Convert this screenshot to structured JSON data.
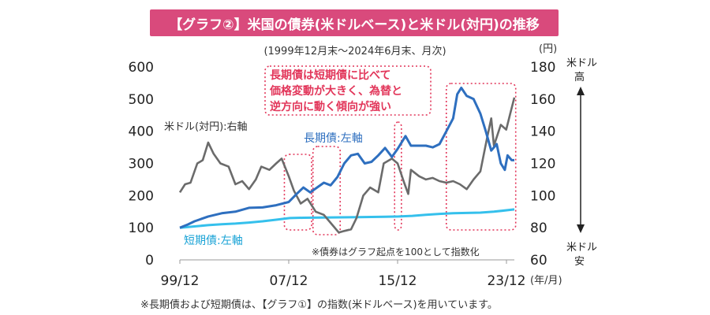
{
  "header": {
    "title": "【グラフ②】米国の債券(米ドルベース)と米ドル(対円)の推移",
    "subtitle": "(1999年12月末〜2024年6月末、月次)"
  },
  "footnote": "※長期債および短期債は、【グラフ①】の指数(米ドルベース)を用いています。",
  "chart_data": {
    "type": "line",
    "x_ticks": [
      "99/12",
      "07/12",
      "15/12",
      "23/12"
    ],
    "x_unit": "(年/月)",
    "y_left": {
      "ticks": [
        "0",
        "100",
        "200",
        "300",
        "400",
        "500",
        "600"
      ],
      "ylim": [
        0,
        600
      ]
    },
    "y_right": {
      "unit": "(円)",
      "ticks": [
        "60",
        "80",
        "100",
        "120",
        "140",
        "160",
        "180"
      ],
      "ylim": [
        60,
        180
      ]
    },
    "annotations": {
      "callout": [
        "長期債は短期債に比べて",
        "価格変動が大きく、為替と",
        "逆方向に動く傾向が強い"
      ],
      "usd_high": [
        "米ドル",
        "高"
      ],
      "usd_low": [
        "米ドル",
        "安"
      ],
      "note": "※債券はグラフ起点を100として指数化"
    },
    "colors": {
      "long": "#2e6fbf",
      "short": "#35c0ec",
      "usd": "#6b6b6b",
      "callout": "#e2365a",
      "title_bg": "#d94a7c"
    },
    "series": [
      {
        "name": "長期債:左軸",
        "color": "#2e6fbf",
        "axis": "left",
        "points": [
          [
            1999.92,
            100
          ],
          [
            2000.5,
            110
          ],
          [
            2001.0,
            120
          ],
          [
            2002.0,
            135
          ],
          [
            2003.0,
            145
          ],
          [
            2004.0,
            150
          ],
          [
            2005.0,
            162
          ],
          [
            2006.0,
            163
          ],
          [
            2007.0,
            170
          ],
          [
            2007.92,
            180
          ],
          [
            2008.5,
            205
          ],
          [
            2009.0,
            225
          ],
          [
            2009.5,
            210
          ],
          [
            2010.0,
            225
          ],
          [
            2010.5,
            240
          ],
          [
            2011.0,
            232
          ],
          [
            2011.5,
            258
          ],
          [
            2012.0,
            300
          ],
          [
            2012.5,
            325
          ],
          [
            2013.0,
            330
          ],
          [
            2013.5,
            300
          ],
          [
            2014.0,
            305
          ],
          [
            2014.5,
            325
          ],
          [
            2015.0,
            348
          ],
          [
            2015.5,
            320
          ],
          [
            2015.92,
            345
          ],
          [
            2016.5,
            385
          ],
          [
            2016.9,
            355
          ],
          [
            2017.5,
            355
          ],
          [
            2018.0,
            355
          ],
          [
            2018.5,
            350
          ],
          [
            2019.0,
            360
          ],
          [
            2019.5,
            400
          ],
          [
            2020.0,
            440
          ],
          [
            2020.3,
            515
          ],
          [
            2020.6,
            535
          ],
          [
            2021.0,
            510
          ],
          [
            2021.5,
            500
          ],
          [
            2022.0,
            455
          ],
          [
            2022.4,
            400
          ],
          [
            2022.8,
            340
          ],
          [
            2023.2,
            360
          ],
          [
            2023.5,
            300
          ],
          [
            2023.8,
            280
          ],
          [
            2024.0,
            325
          ],
          [
            2024.3,
            310
          ],
          [
            2024.5,
            310
          ]
        ]
      },
      {
        "name": "短期債:左軸",
        "color": "#35c0ec",
        "axis": "left",
        "points": [
          [
            1999.92,
            100
          ],
          [
            2001.0,
            104
          ],
          [
            2002.0,
            108
          ],
          [
            2003.0,
            111
          ],
          [
            2004.0,
            113
          ],
          [
            2005.0,
            116
          ],
          [
            2006.0,
            120
          ],
          [
            2007.0,
            125
          ],
          [
            2008.0,
            130
          ],
          [
            2009.0,
            131
          ],
          [
            2011.0,
            132
          ],
          [
            2013.0,
            133
          ],
          [
            2015.0,
            134
          ],
          [
            2016.0,
            135
          ],
          [
            2017.0,
            137
          ],
          [
            2018.0,
            140
          ],
          [
            2019.0,
            143
          ],
          [
            2020.0,
            145
          ],
          [
            2021.0,
            146
          ],
          [
            2022.0,
            147
          ],
          [
            2023.0,
            150
          ],
          [
            2024.5,
            157
          ]
        ]
      },
      {
        "name": "米ドル(対円):右軸",
        "color": "#6b6b6b",
        "axis": "right",
        "points": [
          [
            1999.92,
            102
          ],
          [
            2000.3,
            107
          ],
          [
            2000.7,
            108
          ],
          [
            2001.2,
            120
          ],
          [
            2001.6,
            122
          ],
          [
            2002.0,
            133
          ],
          [
            2002.4,
            126
          ],
          [
            2002.9,
            120
          ],
          [
            2003.5,
            118
          ],
          [
            2004.0,
            107
          ],
          [
            2004.5,
            109
          ],
          [
            2005.0,
            104
          ],
          [
            2005.5,
            110
          ],
          [
            2005.9,
            118
          ],
          [
            2006.5,
            116
          ],
          [
            2007.0,
            120
          ],
          [
            2007.4,
            123
          ],
          [
            2007.92,
            112
          ],
          [
            2008.3,
            103
          ],
          [
            2008.8,
            95
          ],
          [
            2009.3,
            98
          ],
          [
            2009.9,
            90
          ],
          [
            2010.5,
            88
          ],
          [
            2011.0,
            83
          ],
          [
            2011.6,
            77
          ],
          [
            2012.0,
            78
          ],
          [
            2012.5,
            79
          ],
          [
            2012.9,
            86
          ],
          [
            2013.4,
            100
          ],
          [
            2013.9,
            105
          ],
          [
            2014.5,
            102
          ],
          [
            2014.9,
            120
          ],
          [
            2015.5,
            123
          ],
          [
            2015.92,
            120
          ],
          [
            2016.4,
            108
          ],
          [
            2016.7,
            101
          ],
          [
            2016.9,
            116
          ],
          [
            2017.5,
            112
          ],
          [
            2018.0,
            110
          ],
          [
            2018.5,
            111
          ],
          [
            2019.0,
            109
          ],
          [
            2019.5,
            108
          ],
          [
            2020.0,
            109
          ],
          [
            2020.5,
            107
          ],
          [
            2021.0,
            104
          ],
          [
            2021.5,
            110
          ],
          [
            2022.0,
            115
          ],
          [
            2022.5,
            136
          ],
          [
            2022.8,
            148
          ],
          [
            2023.0,
            131
          ],
          [
            2023.5,
            144
          ],
          [
            2023.9,
            141
          ],
          [
            2024.2,
            151
          ],
          [
            2024.5,
            161
          ]
        ]
      }
    ]
  }
}
